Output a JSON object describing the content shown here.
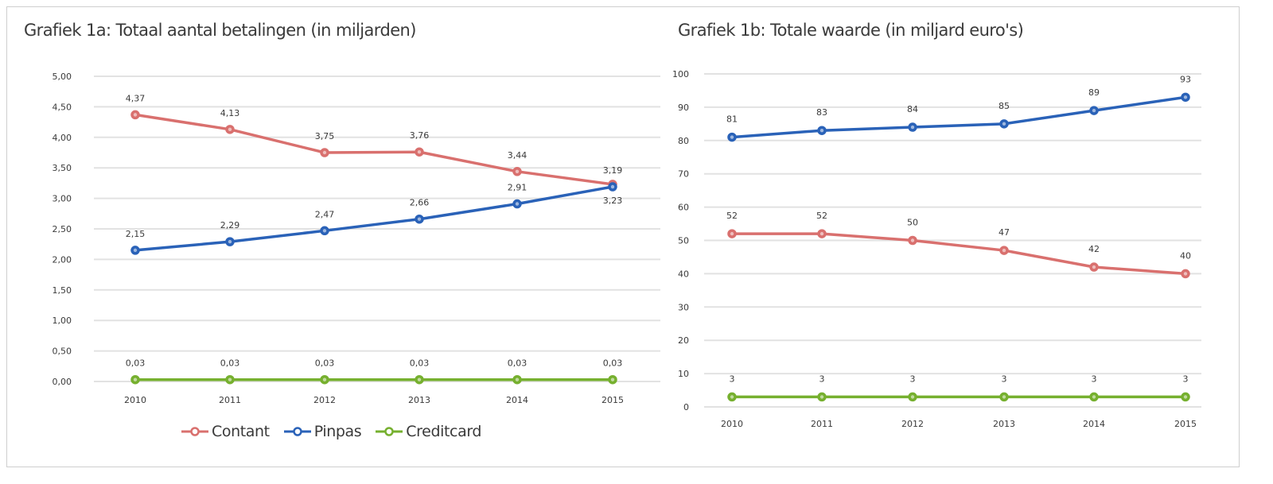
{
  "colors": {
    "contant": "#d9706e",
    "pinpas": "#2a62b8",
    "creditcard": "#76b02f",
    "grid": "#e2e2e2",
    "text": "#3a3a3a"
  },
  "legend": {
    "items": [
      {
        "label": "Contant",
        "color": "#d9706e"
      },
      {
        "label": "Pinpas",
        "color": "#2a62b8"
      },
      {
        "label": "Creditcard",
        "color": "#76b02f"
      }
    ]
  },
  "chart_data": [
    {
      "type": "line",
      "title": "Grafiek 1a: Totaal aantal betalingen (in miljarden)",
      "xlabel": "",
      "ylabel": "",
      "categories": [
        "2010",
        "2011",
        "2012",
        "2013",
        "2014",
        "2015"
      ],
      "ylim": [
        0,
        5
      ],
      "yticks": [
        0,
        0.5,
        1,
        1.5,
        2,
        2.5,
        3,
        3.5,
        4,
        4.5,
        5
      ],
      "ytick_labels": [
        "0,00",
        "0,50",
        "1,00",
        "1,50",
        "2,00",
        "2,50",
        "3,00",
        "3,50",
        "4,00",
        "4,50",
        "5,00"
      ],
      "grid": true,
      "legend_position": "bottom",
      "series": [
        {
          "name": "Contant",
          "color": "#d9706e",
          "values": [
            4.37,
            4.13,
            3.75,
            3.76,
            3.44,
            3.23
          ],
          "labels": [
            "4,37",
            "4,13",
            "3,75",
            "3,76",
            "3,44",
            "3,23"
          ]
        },
        {
          "name": "Pinpas",
          "color": "#2a62b8",
          "values": [
            2.15,
            2.29,
            2.47,
            2.66,
            2.91,
            3.19
          ],
          "labels": [
            "2,15",
            "2,29",
            "2,47",
            "2,66",
            "2,91",
            "3,19"
          ]
        },
        {
          "name": "Creditcard",
          "color": "#76b02f",
          "values": [
            0.03,
            0.03,
            0.03,
            0.03,
            0.03,
            0.03
          ],
          "labels": [
            "0,03",
            "0,03",
            "0,03",
            "0,03",
            "0,03",
            "0,03"
          ]
        }
      ]
    },
    {
      "type": "line",
      "title": "Grafiek 1b: Totale waarde (in miljard euro's)",
      "xlabel": "",
      "ylabel": "",
      "categories": [
        "2010",
        "2011",
        "2012",
        "2013",
        "2014",
        "2015"
      ],
      "ylim": [
        0,
        100
      ],
      "yticks": [
        0,
        10,
        20,
        30,
        40,
        50,
        60,
        70,
        80,
        90,
        100
      ],
      "ytick_labels": [
        "0",
        "10",
        "20",
        "30",
        "40",
        "50",
        "60",
        "70",
        "80",
        "90",
        "100"
      ],
      "grid": true,
      "legend_position": "none",
      "series": [
        {
          "name": "Pinpas",
          "color": "#2a62b8",
          "values": [
            81,
            83,
            84,
            85,
            89,
            93
          ],
          "labels": [
            "81",
            "83",
            "84",
            "85",
            "89",
            "93"
          ]
        },
        {
          "name": "Contant",
          "color": "#d9706e",
          "values": [
            52,
            52,
            50,
            47,
            42,
            40
          ],
          "labels": [
            "52",
            "52",
            "50",
            "47",
            "42",
            "40"
          ]
        },
        {
          "name": "Creditcard",
          "color": "#76b02f",
          "values": [
            3,
            3,
            3,
            3,
            3,
            3
          ],
          "labels": [
            "3",
            "3",
            "3",
            "3",
            "3",
            "3"
          ]
        }
      ]
    }
  ]
}
